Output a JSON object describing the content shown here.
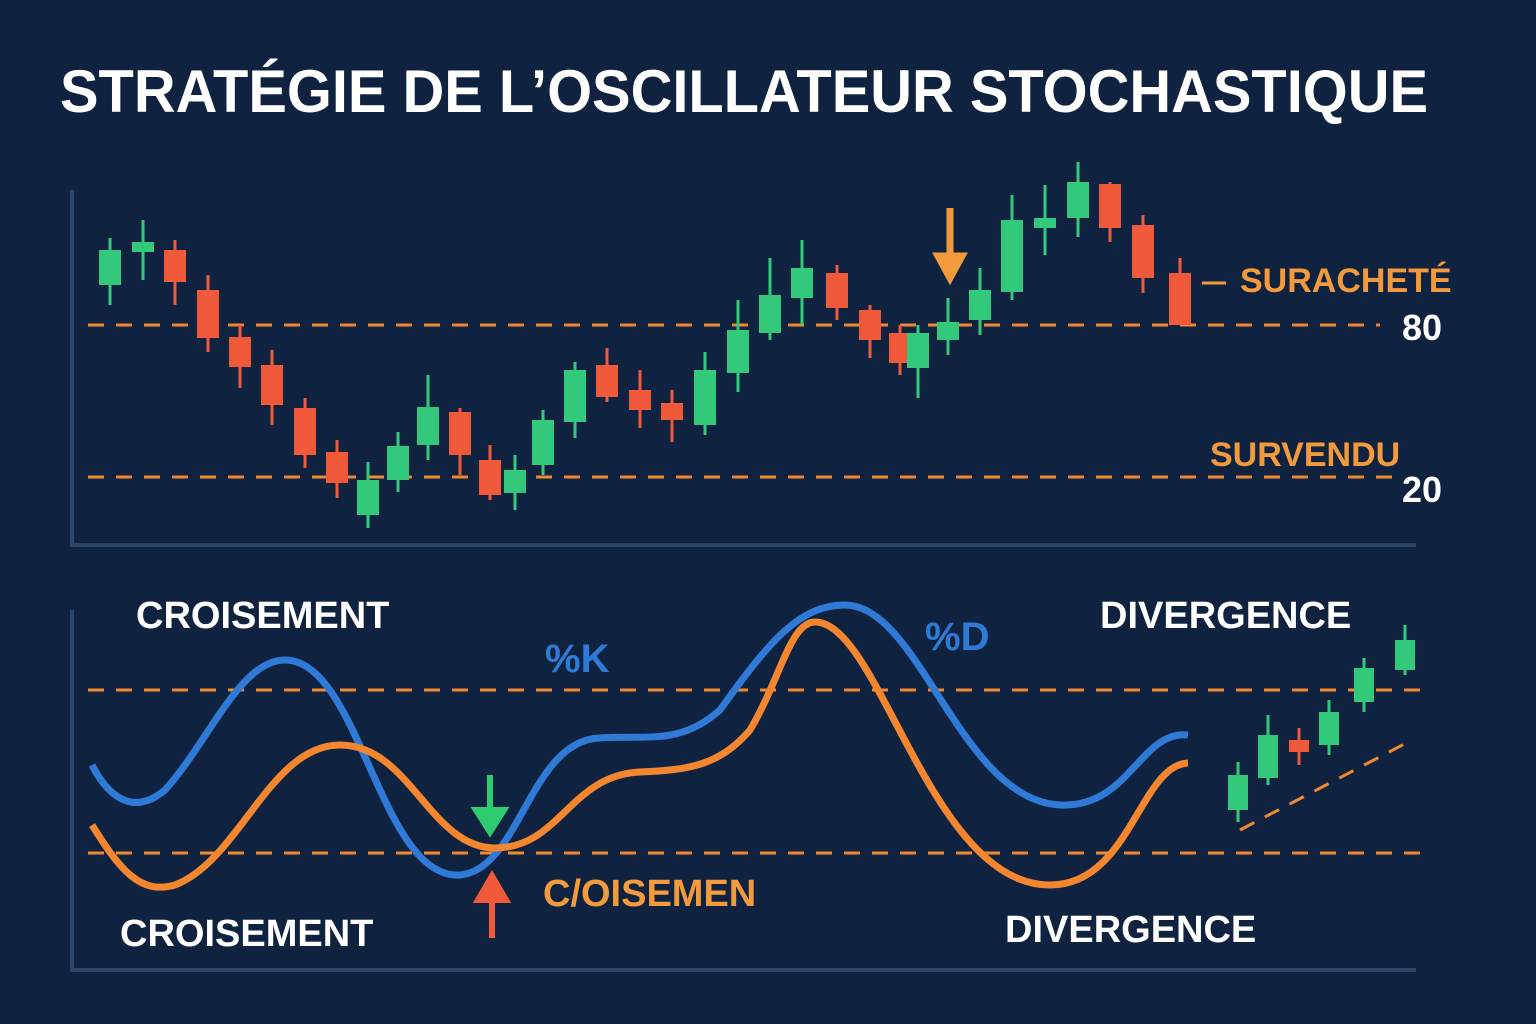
{
  "header": {
    "title": "STRATÉGIE DE L’OSCILLATEUR STOCHASTIQUE"
  },
  "price_panel": {
    "overbought": {
      "label": "SURACHETÉ",
      "level": "80"
    },
    "oversold": {
      "label": "SURVENDU",
      "level": "20"
    }
  },
  "oscillator_panel": {
    "top_left": "CROISEMENT",
    "k_label": "%K",
    "d_label": "%D",
    "top_right": "DIVERGENCE",
    "bottom_left": "CROISEMENT",
    "crossover": "C/OISEMEN",
    "bottom_right": "DIVERGENCE"
  }
}
